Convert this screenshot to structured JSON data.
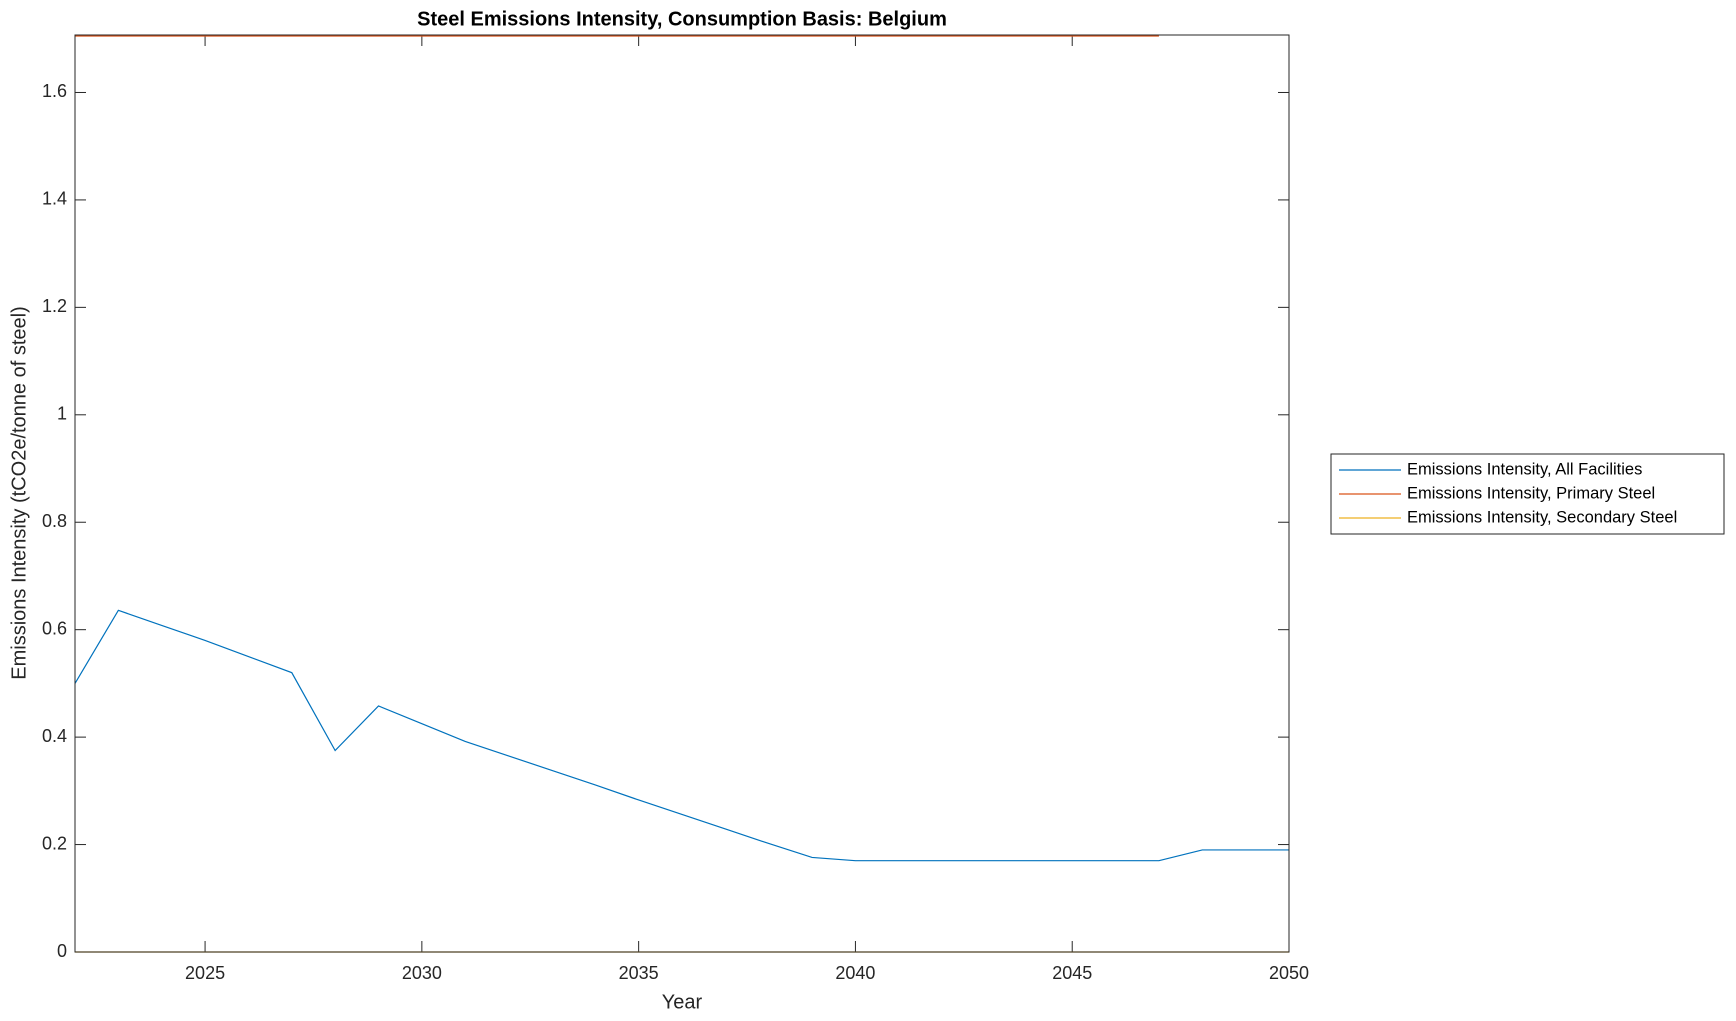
{
  "chart_data": {
    "type": "line",
    "title": "Steel Emissions Intensity, Consumption Basis: Belgium",
    "x_label": "Year",
    "y_label": "Emissions Intensity (tCO2e/tonne of steel)",
    "x": [
      2022,
      2023,
      2024,
      2025,
      2026,
      2027,
      2028,
      2029,
      2030,
      2031,
      2032,
      2033,
      2034,
      2035,
      2036,
      2037,
      2038,
      2039,
      2040,
      2041,
      2042,
      2043,
      2044,
      2045,
      2046,
      2047,
      2048,
      2049,
      2050
    ],
    "series": [
      {
        "name": "Emissions Intensity, All Facilities",
        "color": "#0072bd",
        "values": [
          0.5,
          0.636,
          0.608,
          0.58,
          0.55,
          0.52,
          0.375,
          0.458,
          0.425,
          0.392,
          0.365,
          0.338,
          0.311,
          0.283,
          0.256,
          0.229,
          0.202,
          0.176,
          0.17,
          0.17,
          0.17,
          0.17,
          0.17,
          0.17,
          0.17,
          0.17,
          0.19,
          0.19,
          0.19
        ]
      },
      {
        "name": "Emissions Intensity, Primary Steel",
        "color": "#d95319",
        "values": [
          1.705,
          1.705,
          1.705,
          1.705,
          1.705,
          1.705,
          1.705,
          1.705,
          1.705,
          1.705,
          1.705,
          1.705,
          1.705,
          1.705,
          1.705,
          1.705,
          1.705,
          1.705,
          1.705,
          1.705,
          1.705,
          1.705,
          1.705,
          1.705,
          1.705,
          1.705,
          null,
          null,
          null
        ]
      },
      {
        "name": "Emissions Intensity, Secondary Steel",
        "color": "#edb120",
        "values": [
          0,
          0,
          0,
          0,
          0,
          0,
          0,
          0,
          0,
          0,
          0,
          0,
          0,
          0,
          0,
          0,
          0,
          0,
          0,
          0,
          0,
          0,
          0,
          0,
          0,
          0,
          0,
          0,
          0
        ]
      }
    ],
    "xlim": [
      2022,
      2050
    ],
    "xticks": [
      2025,
      2030,
      2035,
      2040,
      2045,
      2050
    ],
    "ylim": [
      0,
      1.707
    ],
    "yticks": [
      0,
      0.2,
      0.4,
      0.6,
      0.8,
      1,
      1.2,
      1.4,
      1.6
    ],
    "grid": false,
    "legend": "outside-right"
  }
}
